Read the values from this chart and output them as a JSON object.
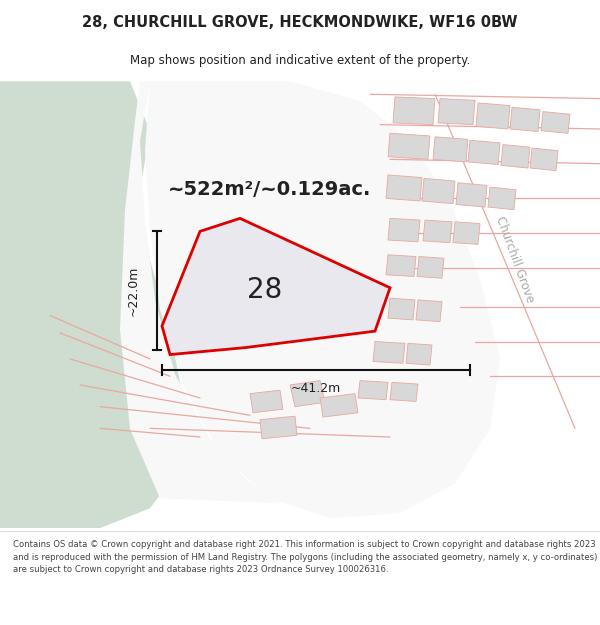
{
  "title": "28, CHURCHILL GROVE, HECKMONDWIKE, WF16 0BW",
  "subtitle": "Map shows position and indicative extent of the property.",
  "area_text": "~522m²/~0.129ac.",
  "label_28": "28",
  "dim_h": "~22.0m",
  "dim_w": "~41.2m",
  "street_label": "Churchill Grove",
  "footer_text": "Contains OS data © Crown copyright and database right 2021. This information is subject to Crown copyright and database rights 2023 and is reproduced with the permission of HM Land Registry. The polygons (including the associated geometry, namely x, y co-ordinates) are subject to Crown copyright and database rights 2023 Ordnance Survey 100026316.",
  "bg_white": "#ffffff",
  "map_bg": "#f0eeec",
  "green_color": "#cfddd1",
  "white_zone_color": "#f8f8f8",
  "property_fill": "#e8e8ee",
  "property_edge": "#dd0000",
  "building_fill": "#d8d8d8",
  "building_edge": "#c8c0c0",
  "road_pink": "#e8a8a0",
  "road_gray": "#c8c8c8",
  "dim_color": "#111111",
  "text_dark": "#222222",
  "street_label_color": "#aaaaaa",
  "footer_color": "#444444",
  "title_fontsize": 10.5,
  "subtitle_fontsize": 8.5,
  "area_fontsize": 14,
  "label_fontsize": 20,
  "dim_fontsize": 9,
  "street_fontsize": 8.5,
  "footer_fontsize": 6.1
}
